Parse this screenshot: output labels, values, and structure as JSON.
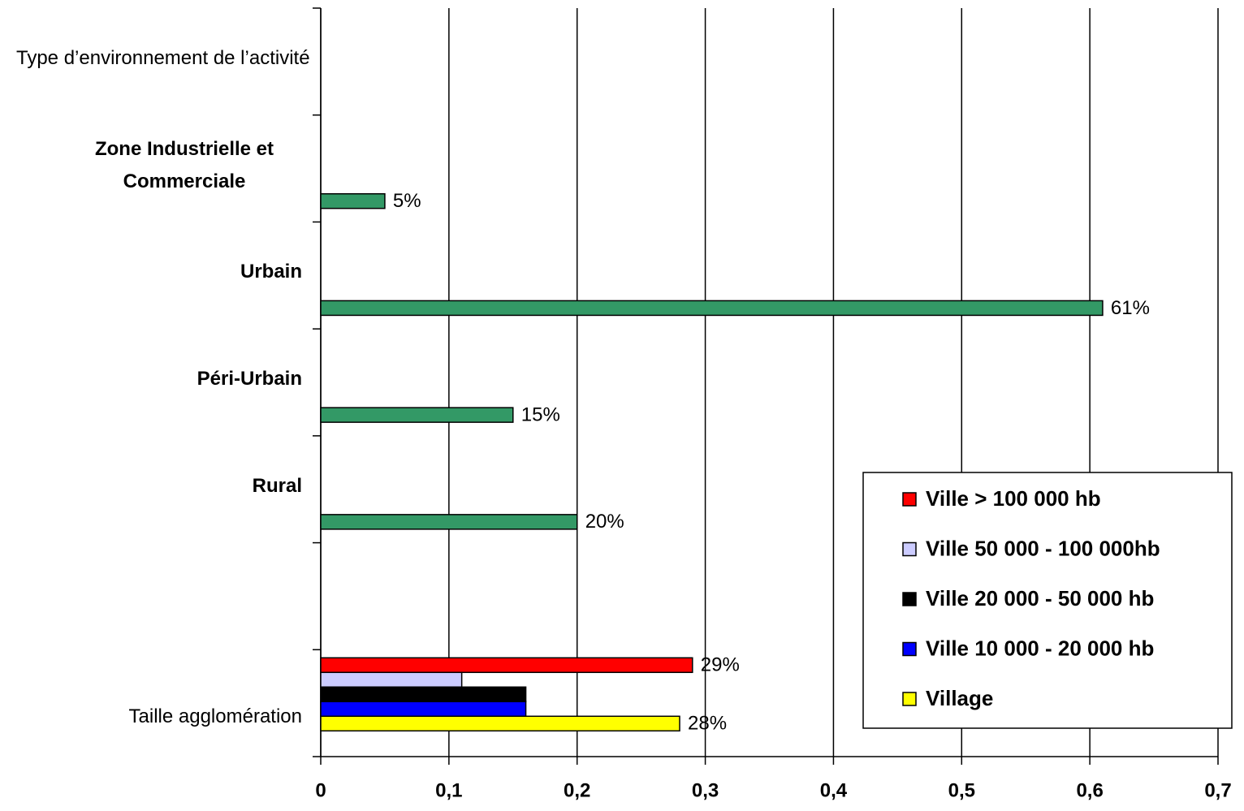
{
  "chart_data": {
    "type": "bar",
    "orientation": "horizontal",
    "categories": [
      "Type d’environnement de l’activité",
      "Zone Industrielle et Commerciale",
      "Urbain",
      "Péri-Urbain",
      "Rural",
      null,
      "Taille agglomération"
    ],
    "series": [
      {
        "color": "#339966",
        "values": [
          null,
          0.05,
          0.61,
          0.15,
          0.2,
          null,
          null
        ],
        "value_labels": [
          null,
          "5%",
          "61%",
          "15%",
          "20%",
          null,
          null
        ]
      },
      {
        "name": "Ville > 100 000 hb",
        "color": "#ff0000",
        "values": [
          null,
          null,
          null,
          null,
          null,
          null,
          0.29
        ],
        "value_labels": [
          null,
          null,
          null,
          null,
          null,
          null,
          "29%"
        ]
      },
      {
        "name": "Ville 50 000 - 100 000hb",
        "color": "#ccccff",
        "values": [
          null,
          null,
          null,
          null,
          null,
          null,
          0.11
        ]
      },
      {
        "name": "Ville 20 000 - 50 000 hb",
        "color": "#000000",
        "values": [
          null,
          null,
          null,
          null,
          null,
          null,
          0.16
        ]
      },
      {
        "name": "Ville 10 000 - 20 000 hb",
        "color": "#0000ff",
        "values": [
          null,
          null,
          null,
          null,
          null,
          null,
          0.16
        ]
      },
      {
        "name": "Village",
        "color": "#ffff00",
        "values": [
          null,
          null,
          null,
          null,
          null,
          null,
          0.28
        ],
        "value_labels": [
          null,
          null,
          null,
          null,
          null,
          null,
          "28%"
        ]
      }
    ],
    "xlim": [
      0,
      0.7
    ],
    "xticks": [
      0,
      {
        "value": 0.1,
        "label": "0,1"
      },
      {
        "value": 0.2,
        "label": "0,2"
      },
      {
        "value": 0.3,
        "label": "0,3"
      },
      {
        "value": 0.4,
        "label": "0,4"
      },
      {
        "value": 0.5,
        "label": "0,5"
      },
      {
        "value": 0.6,
        "label": "0,6"
      },
      {
        "value": 0.7,
        "label": "0,7"
      }
    ],
    "grid": true,
    "legend": "lower right"
  }
}
